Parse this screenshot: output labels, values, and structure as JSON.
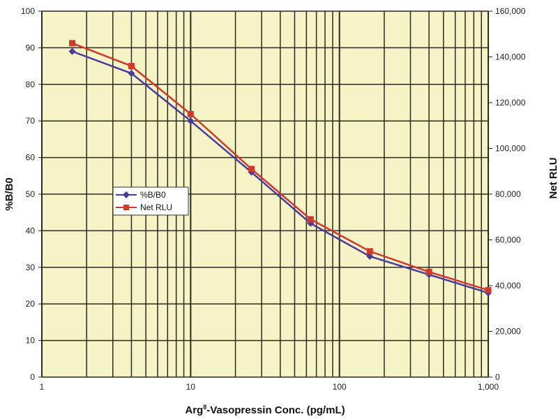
{
  "chart_data": {
    "type": "line",
    "title": "",
    "xlabel": "Arg8-Vasopressin Conc. (pg/mL)",
    "xlabel_main": "Arg",
    "xlabel_sup": "8",
    "xlabel_rest": "-Vasopressin Conc. (pg/mL)",
    "ylabel": "%B/B0",
    "y2label": "Net RLU",
    "xscale": "log",
    "xlim": [
      1,
      1000
    ],
    "ylim": [
      0,
      100
    ],
    "y2lim": [
      0,
      160000
    ],
    "grid": true,
    "legend_position": "center-left",
    "xticks": [
      "1",
      "10",
      "100",
      "1,000"
    ],
    "yticks": [
      "0",
      "10",
      "20",
      "30",
      "40",
      "50",
      "60",
      "70",
      "80",
      "90",
      "100"
    ],
    "y2ticks": [
      "0",
      "20,000",
      "40,000",
      "60,000",
      "80,000",
      "100,000",
      "120,000",
      "140,000",
      "160,000"
    ],
    "x": [
      1.6,
      4,
      10,
      25.6,
      64,
      160,
      400,
      1000
    ],
    "series": [
      {
        "name": "%B/B0",
        "axis": "left",
        "color": "#4a3a9c",
        "marker": "diamond",
        "values": [
          89,
          83,
          70,
          56,
          42,
          33,
          28,
          23
        ]
      },
      {
        "name": "Net RLU",
        "axis": "right",
        "color": "#d2392b",
        "marker": "square",
        "values": [
          146000,
          136000,
          115000,
          91000,
          69000,
          55000,
          46000,
          38000
        ]
      }
    ]
  }
}
